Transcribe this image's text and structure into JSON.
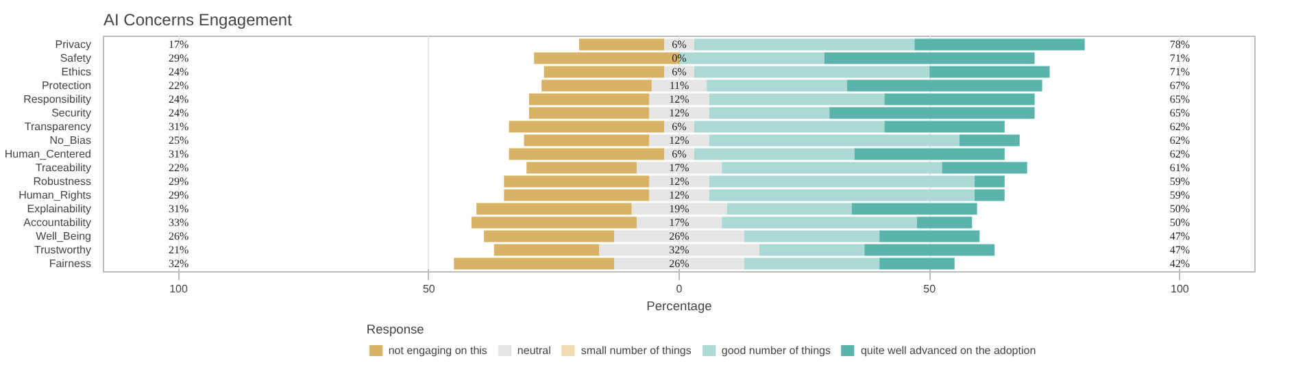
{
  "chart_data": {
    "type": "bar",
    "orientation": "horizontal",
    "stacked": true,
    "title": "AI Concerns Engagement",
    "xlabel": "Percentage",
    "legend_title": "Response",
    "legend": "bottom",
    "grid": "x",
    "categories": [
      "Privacy",
      "Safety",
      "Ethics",
      "Protection",
      "Responsibility",
      "Security",
      "Transparency",
      "No_Bias",
      "Human_Centered",
      "Traceability",
      "Robustness",
      "Human_Rights",
      "Explainability",
      "Accountability",
      "Well_Being",
      "Trustworthy",
      "Fairness"
    ],
    "xlim": [
      -115,
      115
    ],
    "xticks": [
      {
        "value": -100,
        "label": "100"
      },
      {
        "value": -50,
        "label": "50"
      },
      0,
      50,
      100
    ],
    "series": [
      {
        "name": "neutral",
        "color": "#e5e5e5",
        "values": [
          -3,
          0,
          -3,
          -5.5,
          -6,
          -6,
          -3,
          -6,
          -3,
          -8.5,
          -6,
          -6,
          -9.5,
          -8.5,
          -13,
          -16,
          -13
        ]
      },
      {
        "color": "#e5e5e5",
        "values": [
          3,
          0,
          3,
          5.5,
          6,
          6,
          3,
          6,
          3,
          8.5,
          6,
          6,
          9.5,
          8.5,
          13,
          16,
          13
        ]
      },
      {
        "name": "small number of things",
        "color": "#efdcb0",
        "values": [
          0,
          0,
          0,
          0,
          0,
          0,
          0,
          0,
          0,
          0,
          0,
          0,
          0,
          0,
          0,
          0,
          0
        ]
      },
      {
        "name": "not engaging on this",
        "color": "#d8b265",
        "values": [
          -17,
          -29,
          -24,
          -22,
          -24,
          -24,
          -31,
          -25,
          -31,
          -22,
          -29,
          -29,
          -31,
          -33,
          -26,
          -21,
          -32
        ]
      },
      {
        "name": "good number of things",
        "color": "#acd9d6",
        "values": [
          44,
          29,
          47,
          28,
          35,
          24,
          38,
          50,
          32,
          44,
          53,
          53,
          25,
          39,
          27,
          21,
          27
        ]
      },
      {
        "name": "quite well advanced on the adoption",
        "color": "#5ab4ac",
        "values": [
          34,
          42,
          24,
          39,
          30,
          41,
          24,
          12,
          30,
          17,
          6,
          6,
          25,
          11,
          20,
          26,
          15
        ]
      }
    ],
    "annotations": [
      "17%",
      "29%",
      "24%",
      "22%",
      "24%",
      "24%",
      "31%",
      "25%",
      "31%",
      "22%",
      "29%",
      "29%",
      "31%",
      "33%",
      "26%",
      "21%",
      "32%",
      "6%",
      "0%",
      "6%",
      "11%",
      "12%",
      "12%",
      "6%",
      "12%",
      "6%",
      "17%",
      "12%",
      "12%",
      "19%",
      "17%",
      "26%",
      "32%",
      "26%",
      "78%",
      "71%",
      "71%",
      "67%",
      "65%",
      "65%",
      "62%",
      "62%",
      "62%",
      "61%",
      "59%",
      "59%",
      "50%",
      "50%",
      "47%",
      "47%",
      "42%"
    ]
  }
}
